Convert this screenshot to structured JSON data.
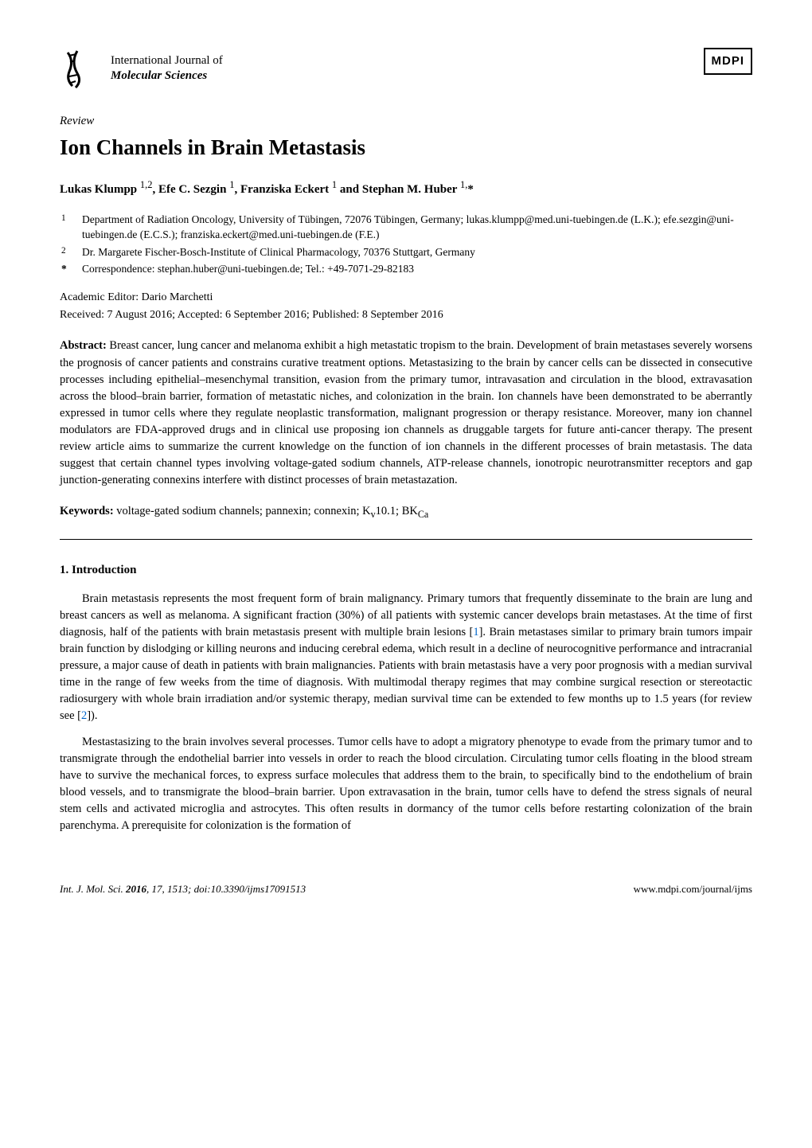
{
  "header": {
    "journal_line1": "International Journal of",
    "journal_line2": "Molecular Sciences",
    "publisher": "MDPI"
  },
  "article": {
    "type": "Review",
    "title": "Ion Channels in Brain Metastasis",
    "authors_html": "Lukas Klumpp <sup>1,2</sup>, Efe C. Sezgin <sup>1</sup>, Franziska Eckert <sup>1</sup> and Stephan M. Huber <sup>1,</sup>*"
  },
  "affiliations": [
    {
      "marker": "1",
      "text": "Department of Radiation Oncology, University of Tübingen, 72076 Tübingen, Germany; lukas.klumpp@med.uni-tuebingen.de (L.K.); efe.sezgin@uni-tuebingen.de (E.C.S.); franziska.eckert@med.uni-tuebingen.de (F.E.)"
    },
    {
      "marker": "2",
      "text": "Dr. Margarete Fischer-Bosch-Institute of Clinical Pharmacology, 70376 Stuttgart, Germany"
    },
    {
      "marker": "*",
      "text": "Correspondence: stephan.huber@uni-tuebingen.de; Tel.: +49-7071-29-82183"
    }
  ],
  "editor": "Academic Editor: Dario Marchetti",
  "dates": "Received: 7 August 2016; Accepted: 6 September 2016; Published: 8 September 2016",
  "abstract": {
    "label": "Abstract:",
    "text": " Breast cancer, lung cancer and melanoma exhibit a high metastatic tropism to the brain. Development of brain metastases severely worsens the prognosis of cancer patients and constrains curative treatment options. Metastasizing to the brain by cancer cells can be dissected in consecutive processes including epithelial–mesenchymal transition, evasion from the primary tumor, intravasation and circulation in the blood, extravasation across the blood–brain barrier, formation of metastatic niches, and colonization in the brain. Ion channels have been demonstrated to be aberrantly expressed in tumor cells where they regulate neoplastic transformation, malignant progression or therapy resistance. Moreover, many ion channel modulators are FDA-approved drugs and in clinical use proposing ion channels as druggable targets for future anti-cancer therapy. The present review article aims to summarize the current knowledge on the function of ion channels in the different processes of brain metastasis. The data suggest that certain channel types involving voltage-gated sodium channels, ATP-release channels, ionotropic neurotransmitter receptors and gap junction-generating connexins interfere with distinct processes of brain metastazation."
  },
  "keywords": {
    "label": "Keywords:",
    "text_html": " voltage-gated sodium channels; pannexin; connexin; K<sub>v</sub>10.1; BK<sub>Ca</sub>"
  },
  "section1": {
    "heading": "1. Introduction",
    "para1_html": "Brain metastasis represents the most frequent form of brain malignancy. Primary tumors that frequently disseminate to the brain are lung and breast cancers as well as melanoma. A significant fraction (30%) of all patients with systemic cancer develops brain metastases. At the time of first diagnosis, half of the patients with brain metastasis present with multiple brain lesions [<span class=\"ref-link\">1</span>]. Brain metastases similar to primary brain tumors impair brain function by dislodging or killing neurons and inducing cerebral edema, which result in a decline of neurocognitive performance and intracranial pressure, a major cause of death in patients with brain malignancies. Patients with brain metastasis have a very poor prognosis with a median survival time in the range of few weeks from the time of diagnosis. With multimodal therapy regimes that may combine surgical resection or stereotactic radiosurgery with whole brain irradiation and/or systemic therapy, median survival time can be extended to few months up to 1.5 years (for review see [<span class=\"ref-link\">2</span>]).",
    "para2": "Mestastasizing to the brain involves several processes. Tumor cells have to adopt a migratory phenotype to evade from the primary tumor and to transmigrate through the endothelial barrier into vessels in order to reach the blood circulation. Circulating tumor cells floating in the blood stream have to survive the mechanical forces, to express surface molecules that address them to the brain, to specifically bind to the endothelium of brain blood vessels, and to transmigrate the blood–brain barrier. Upon extravasation in the brain, tumor cells have to defend the stress signals of neural stem cells and activated microglia and astrocytes. This often results in dormancy of the tumor cells before restarting colonization of the brain parenchyma. A prerequisite for colonization is the formation of"
  },
  "footer": {
    "left_html": "<i>Int. J. Mol. Sci.</i> <b>2016</b>, <i>17</i>, 1513; doi:10.3390/ijms17091513",
    "right": "www.mdpi.com/journal/ijms"
  },
  "colors": {
    "text": "#000000",
    "background": "#ffffff",
    "link": "#0066cc",
    "logo_dark": "#1a1a1a"
  },
  "typography": {
    "body_family": "Palatino Linotype, Palatino, Book Antiqua, Georgia, serif",
    "title_fontsize_pt": 20,
    "body_fontsize_pt": 11,
    "small_fontsize_pt": 10
  }
}
